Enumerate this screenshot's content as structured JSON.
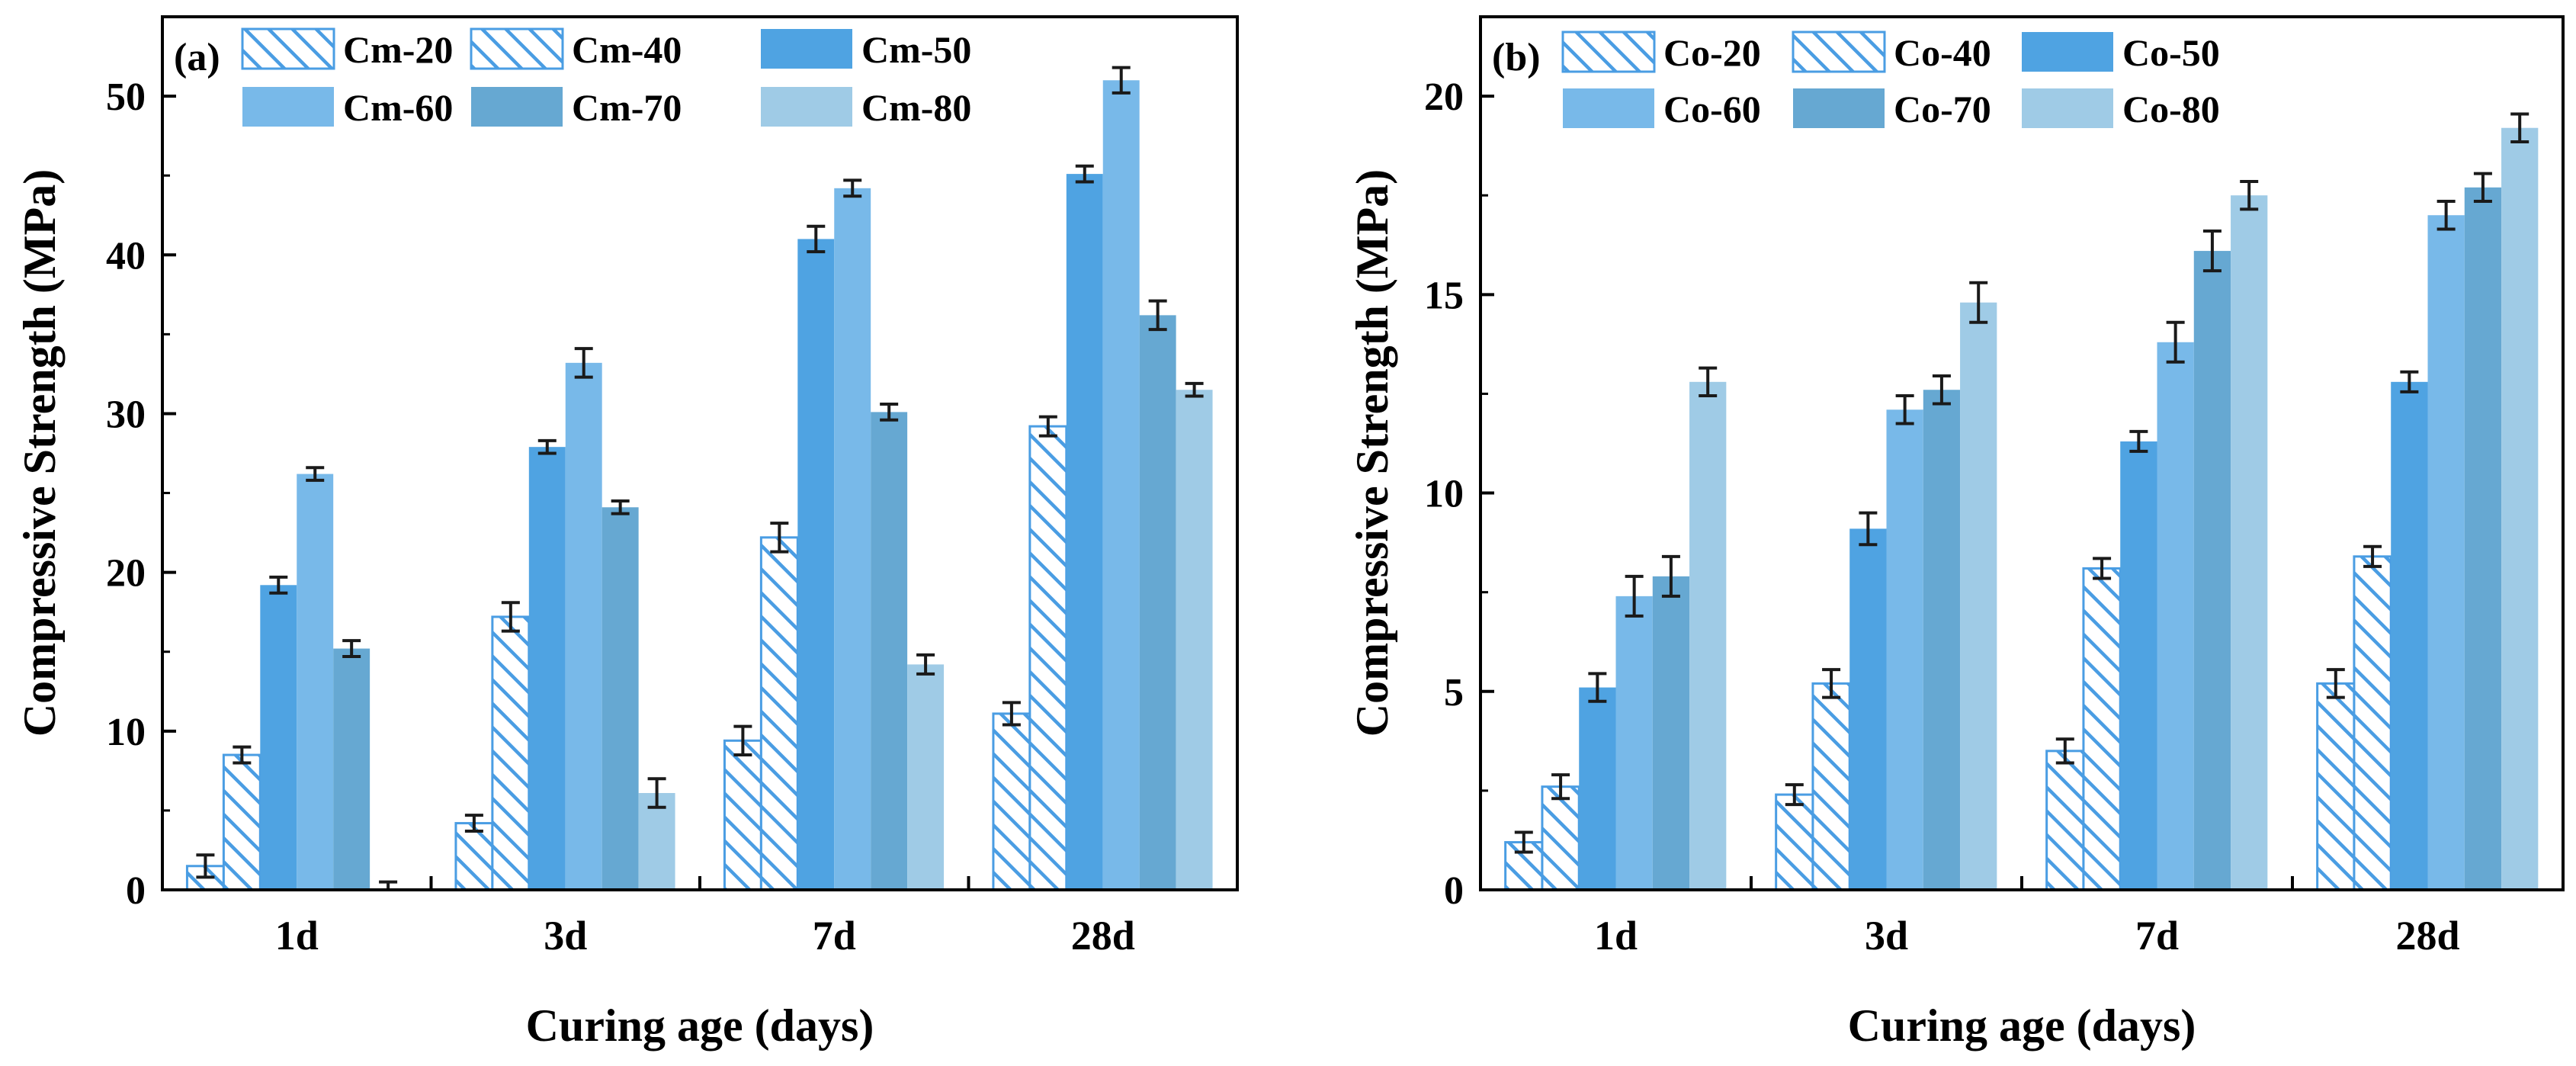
{
  "colors": {
    "c20": "#4a9de3",
    "c40": "#4a9de3",
    "c50": "#4fa3e2",
    "c60": "#78b9e9",
    "c70": "#66a8d2",
    "c80": "#9fcbe6",
    "hatch_stroke": "#4a9de3",
    "axis": "#000000",
    "error_bar": "#1a1a1a"
  },
  "chart_data": [
    {
      "type": "bar",
      "panel_label": "(a)",
      "title": "",
      "xlabel": "Curing age (days)",
      "ylabel": "Compressive Strength (MPa)",
      "categories": [
        "1d",
        "3d",
        "7d",
        "28d"
      ],
      "ylim": [
        0,
        55
      ],
      "yticks": [
        0,
        10,
        20,
        30,
        40,
        50
      ],
      "grid": false,
      "legend_position": "top-left",
      "series": [
        {
          "name": "Cm-20",
          "style": "hatch",
          "color_key": "c20",
          "values": [
            1.5,
            4.2,
            9.4,
            11.1
          ],
          "errors": [
            0.7,
            0.5,
            0.9,
            0.7
          ]
        },
        {
          "name": "Cm-40",
          "style": "hatch",
          "color_key": "c40",
          "values": [
            8.5,
            17.2,
            22.2,
            29.2
          ],
          "errors": [
            0.5,
            0.9,
            0.9,
            0.6
          ]
        },
        {
          "name": "Cm-50",
          "style": "solid",
          "color_key": "c50",
          "values": [
            19.2,
            27.9,
            41.0,
            45.1
          ],
          "errors": [
            0.5,
            0.4,
            0.8,
            0.5
          ]
        },
        {
          "name": "Cm-60",
          "style": "solid",
          "color_key": "c60",
          "values": [
            26.2,
            33.2,
            44.2,
            51.0
          ],
          "errors": [
            0.4,
            0.9,
            0.5,
            0.8
          ]
        },
        {
          "name": "Cm-70",
          "style": "solid",
          "color_key": "c70",
          "values": [
            15.2,
            24.1,
            30.1,
            36.2
          ],
          "errors": [
            0.5,
            0.4,
            0.5,
            0.9
          ]
        },
        {
          "name": "Cm-80",
          "style": "solid",
          "color_key": "c80",
          "values": [
            0.0,
            6.1,
            14.2,
            31.5
          ],
          "errors": [
            0.5,
            0.9,
            0.6,
            0.4
          ]
        }
      ]
    },
    {
      "type": "bar",
      "panel_label": "(b)",
      "title": "",
      "xlabel": "Curing age (days)",
      "ylabel": "Compressive Strength (MPa)",
      "categories": [
        "1d",
        "3d",
        "7d",
        "28d"
      ],
      "ylim": [
        0,
        22
      ],
      "yticks": [
        0,
        5,
        10,
        15,
        20
      ],
      "grid": false,
      "legend_position": "top-left",
      "series": [
        {
          "name": "Co-20",
          "style": "hatch",
          "color_key": "c20",
          "values": [
            1.2,
            2.4,
            3.5,
            5.2
          ],
          "errors": [
            0.25,
            0.25,
            0.3,
            0.35
          ]
        },
        {
          "name": "Co-40",
          "style": "hatch",
          "color_key": "c40",
          "values": [
            2.6,
            5.2,
            8.1,
            8.4
          ],
          "errors": [
            0.3,
            0.35,
            0.25,
            0.25
          ]
        },
        {
          "name": "Co-50",
          "style": "solid",
          "color_key": "c50",
          "values": [
            5.1,
            9.1,
            11.3,
            12.8
          ],
          "errors": [
            0.35,
            0.4,
            0.25,
            0.25
          ]
        },
        {
          "name": "Co-60",
          "style": "solid",
          "color_key": "c60",
          "values": [
            7.4,
            12.1,
            13.8,
            17.0
          ],
          "errors": [
            0.5,
            0.35,
            0.5,
            0.35
          ]
        },
        {
          "name": "Co-70",
          "style": "solid",
          "color_key": "c70",
          "values": [
            7.9,
            12.6,
            16.1,
            17.7
          ],
          "errors": [
            0.5,
            0.35,
            0.5,
            0.35
          ]
        },
        {
          "name": "Co-80",
          "style": "solid",
          "color_key": "c80",
          "values": [
            12.8,
            14.8,
            17.5,
            19.2
          ],
          "errors": [
            0.35,
            0.5,
            0.35,
            0.35
          ]
        }
      ]
    }
  ]
}
